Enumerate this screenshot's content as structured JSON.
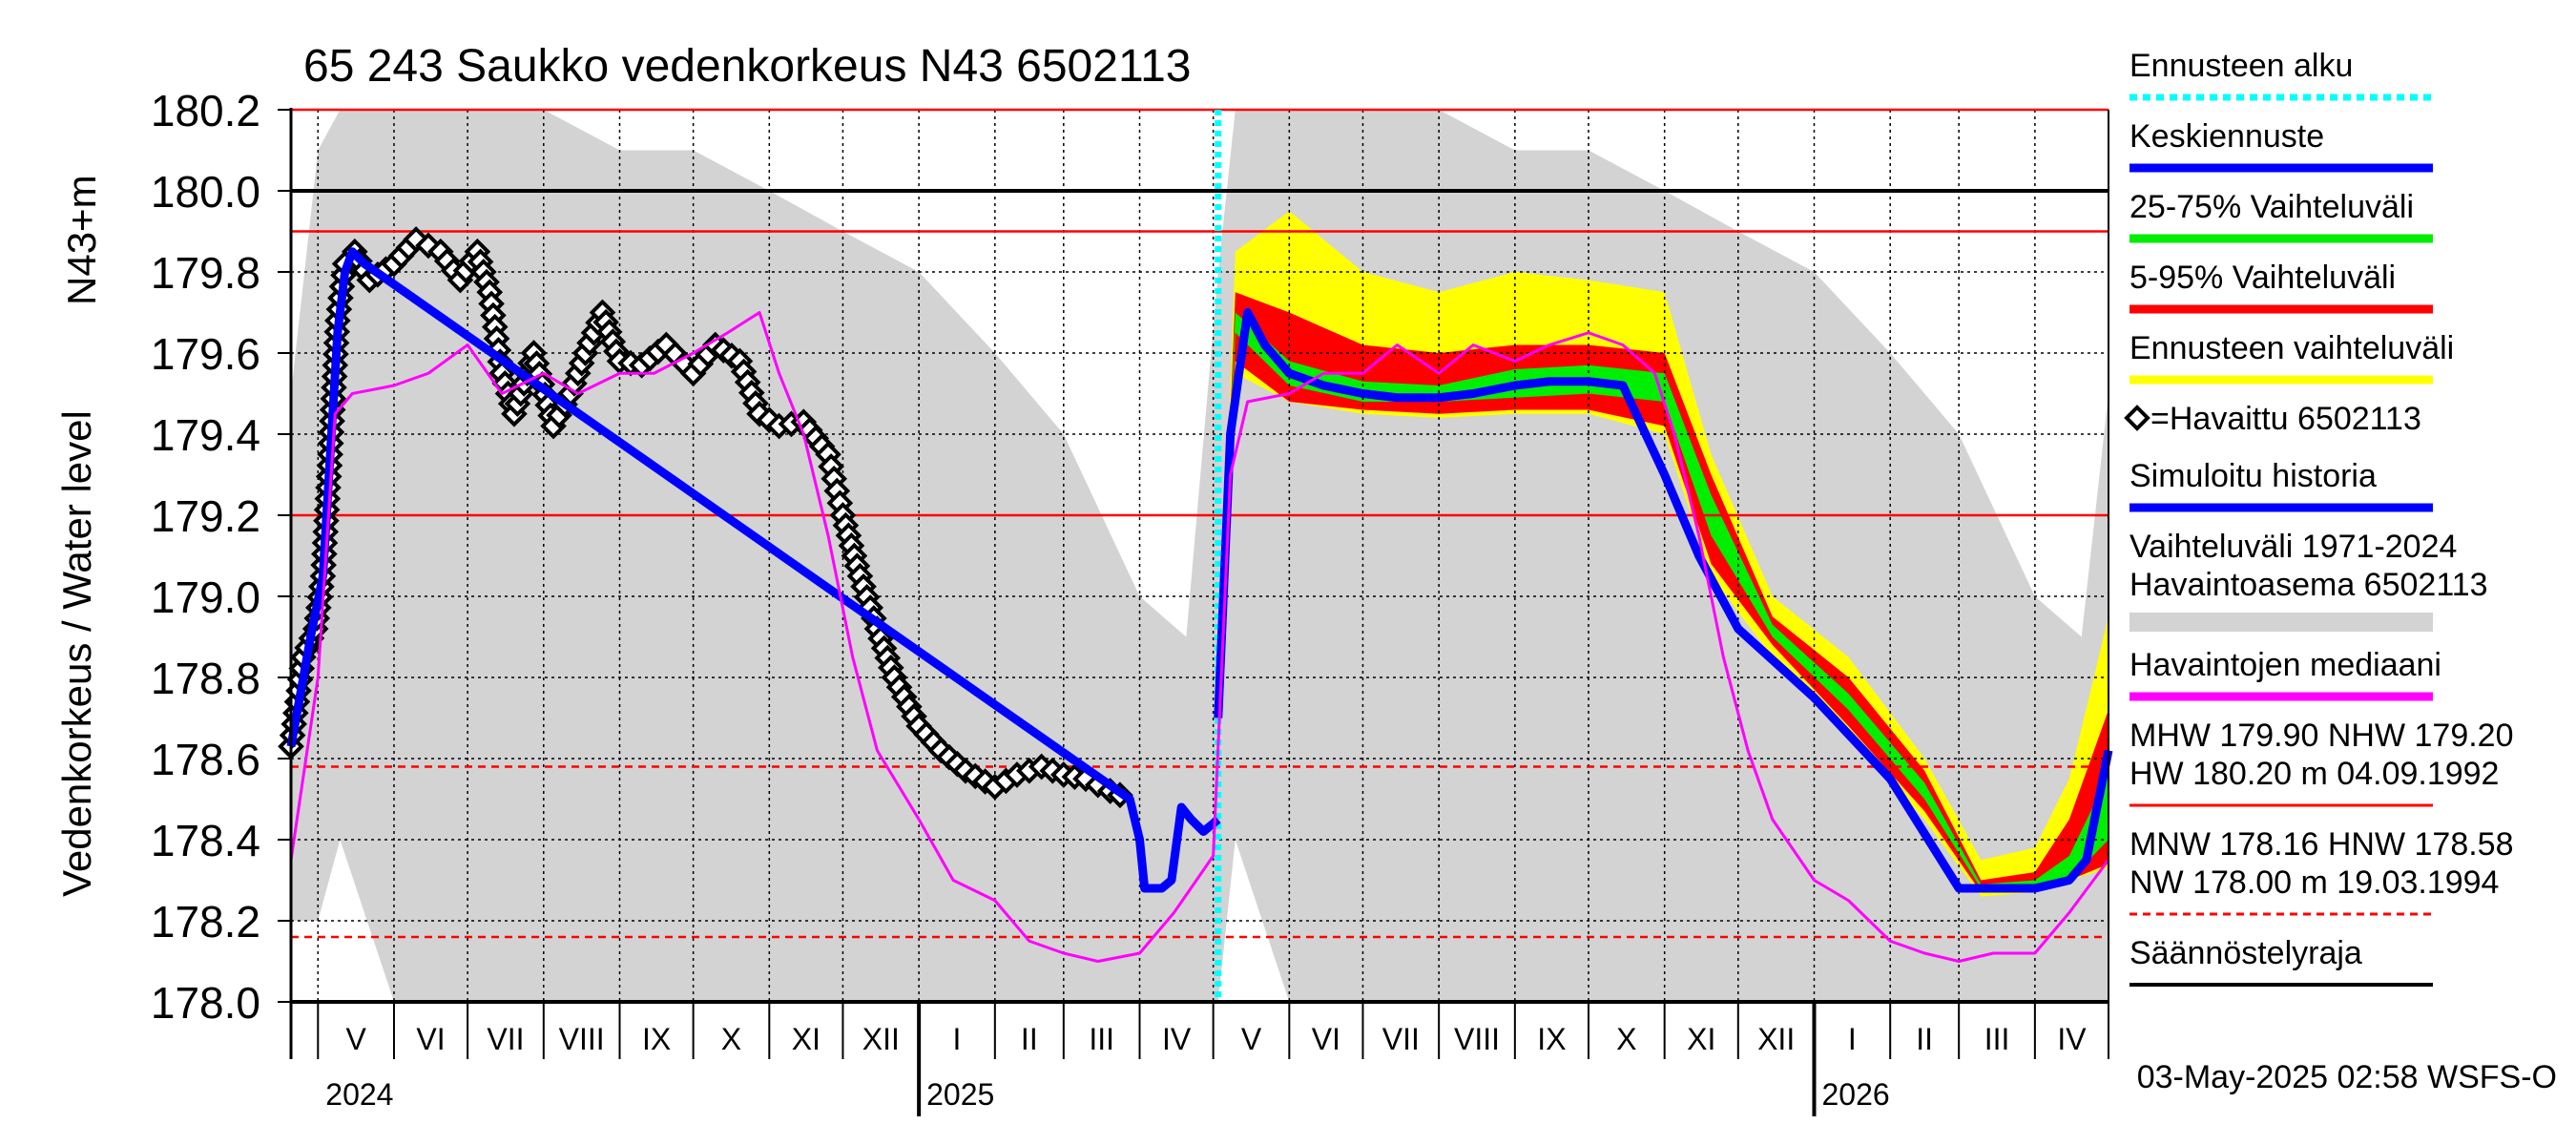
{
  "chart_data": {
    "type": "line",
    "title": "65 243 Saukko vedenkorkeus N43 6502113",
    "ylabel": "Vedenkorkeus / Water level",
    "yunit": "N43+m",
    "ylim": [
      178.0,
      180.2
    ],
    "yticks": [
      "178.0",
      "178.2",
      "178.4",
      "178.6",
      "178.8",
      "179.0",
      "179.2",
      "179.4",
      "179.6",
      "179.8",
      "180.0",
      "180.2"
    ],
    "xlim": [
      "2024-04-20",
      "2026-05-01"
    ],
    "forecast_start": "2025-05-03",
    "month_labels": [
      "V",
      "VI",
      "VII",
      "VIII",
      "IX",
      "X",
      "XI",
      "XII",
      "I",
      "II",
      "III",
      "IV",
      "V",
      "VI",
      "VII",
      "VIII",
      "IX",
      "X",
      "XI",
      "XII",
      "I",
      "II",
      "III",
      "IV"
    ],
    "year_labels": [
      "2024",
      "2025",
      "2026"
    ],
    "grid": true,
    "reference_lines": [
      {
        "name": "HW",
        "value": 180.2,
        "color": "#ff0000",
        "style": "solid"
      },
      {
        "name": "Säännöstelyraja",
        "value": 180.0,
        "color": "#000000",
        "style": "solid"
      },
      {
        "name": "MHW",
        "value": 179.9,
        "color": "#ff0000",
        "style": "solid"
      },
      {
        "name": "NHW",
        "value": 179.2,
        "color": "#ff0000",
        "style": "solid"
      },
      {
        "name": "HNW",
        "value": 178.58,
        "color": "#ff0000",
        "style": "dashed"
      },
      {
        "name": "MNW",
        "value": 178.16,
        "color": "#ff0000",
        "style": "dashed"
      }
    ],
    "series": [
      {
        "name": "Havaittu 6502113",
        "color": "#000000",
        "marker": "diamond",
        "x": [
          "2024-04-20",
          "2024-04-25",
          "2024-04-30",
          "2024-05-03",
          "2024-05-06",
          "2024-05-09",
          "2024-05-12",
          "2024-05-16",
          "2024-05-22",
          "2024-06-01",
          "2024-06-10",
          "2024-06-20",
          "2024-06-28",
          "2024-07-05",
          "2024-07-10",
          "2024-07-15",
          "2024-07-20",
          "2024-07-28",
          "2024-08-05",
          "2024-08-12",
          "2024-08-18",
          "2024-08-25",
          "2024-09-01",
          "2024-09-10",
          "2024-09-20",
          "2024-10-01",
          "2024-10-10",
          "2024-10-20",
          "2024-10-28",
          "2024-11-05",
          "2024-11-15",
          "2024-11-25",
          "2024-12-01",
          "2024-12-08",
          "2024-12-15",
          "2024-12-22",
          "2025-01-01",
          "2025-01-10",
          "2025-01-20",
          "2025-02-01",
          "2025-02-10",
          "2025-02-20",
          "2025-03-01",
          "2025-03-10",
          "2025-03-20",
          "2025-03-28"
        ],
        "y": [
          178.63,
          178.85,
          178.92,
          179.05,
          179.35,
          179.68,
          179.82,
          179.85,
          179.78,
          179.82,
          179.88,
          179.85,
          179.78,
          179.85,
          179.75,
          179.55,
          179.45,
          179.6,
          179.42,
          179.5,
          179.6,
          179.7,
          179.58,
          179.57,
          179.62,
          179.55,
          179.62,
          179.58,
          179.45,
          179.42,
          179.43,
          179.35,
          179.2,
          179.05,
          178.92,
          178.8,
          178.68,
          178.62,
          178.57,
          178.53,
          178.56,
          178.58,
          178.56,
          178.55,
          178.52,
          178.5
        ]
      },
      {
        "name": "Simuloitu historia",
        "color": "#0000ff",
        "x": [
          "2024-04-20",
          "2024-04-28",
          "2024-05-03",
          "2024-05-06",
          "2024-05-09",
          "2024-05-12",
          "2024-05-15",
          "2024-05-20",
          "2025-03-28",
          "2025-04-01",
          "2025-04-03",
          "2025-04-10",
          "2025-04-14",
          "2025-04-18",
          "2025-04-22",
          "2025-04-27",
          "2025-05-03"
        ],
        "y": [
          178.63,
          178.9,
          179.05,
          179.35,
          179.65,
          179.8,
          179.85,
          179.82,
          178.5,
          178.4,
          178.28,
          178.28,
          178.3,
          178.48,
          178.45,
          178.42,
          178.45
        ]
      },
      {
        "name": "Keskiennuste",
        "color": "#0000ff",
        "x": [
          "2025-05-03",
          "2025-05-08",
          "2025-05-15",
          "2025-05-22",
          "2025-06-01",
          "2025-06-15",
          "2025-07-01",
          "2025-07-15",
          "2025-08-01",
          "2025-08-15",
          "2025-09-01",
          "2025-09-15",
          "2025-10-01",
          "2025-10-15",
          "2025-11-01",
          "2025-11-15",
          "2025-12-01",
          "2026-01-01",
          "2026-02-01",
          "2026-03-01",
          "2026-03-15",
          "2026-04-01",
          "2026-04-15",
          "2026-04-22",
          "2026-05-01"
        ],
        "y": [
          178.7,
          179.4,
          179.7,
          179.62,
          179.55,
          179.52,
          179.5,
          179.49,
          179.49,
          179.5,
          179.52,
          179.53,
          179.53,
          179.52,
          179.3,
          179.1,
          178.92,
          178.75,
          178.55,
          178.28,
          178.28,
          178.28,
          178.3,
          178.35,
          178.62
        ]
      },
      {
        "name": "Havaintojen mediaani",
        "color": "#ff00ff",
        "x": [
          "2024-04-20",
          "2024-05-01",
          "2024-05-08",
          "2024-05-15",
          "2024-06-01",
          "2024-06-15",
          "2024-07-01",
          "2024-07-15",
          "2024-08-01",
          "2024-08-15",
          "2024-09-01",
          "2024-09-15",
          "2024-10-01",
          "2024-10-15",
          "2024-10-28",
          "2024-11-05",
          "2024-11-15",
          "2024-11-25",
          "2024-12-05",
          "2024-12-15",
          "2025-01-01",
          "2025-01-15",
          "2025-02-01",
          "2025-02-15",
          "2025-03-01",
          "2025-03-15",
          "2025-04-01",
          "2025-04-15",
          "2025-05-01",
          "2025-05-08",
          "2025-05-15",
          "2025-06-01",
          "2025-06-15",
          "2025-07-01",
          "2025-07-15",
          "2025-08-01",
          "2025-08-15",
          "2025-09-01",
          "2025-09-15",
          "2025-10-01",
          "2025-10-15",
          "2025-10-28",
          "2025-11-05",
          "2025-11-15",
          "2025-11-25",
          "2025-12-05",
          "2025-12-15",
          "2026-01-01",
          "2026-01-15",
          "2026-02-01",
          "2026-02-15",
          "2026-03-01",
          "2026-03-15",
          "2026-04-01",
          "2026-04-15",
          "2026-05-01"
        ],
        "y": [
          178.35,
          178.8,
          179.45,
          179.5,
          179.52,
          179.55,
          179.62,
          179.5,
          179.55,
          179.5,
          179.55,
          179.55,
          179.6,
          179.65,
          179.7,
          179.55,
          179.4,
          179.15,
          178.85,
          178.62,
          178.45,
          178.3,
          178.25,
          178.15,
          178.12,
          178.1,
          178.12,
          178.22,
          178.36,
          179.3,
          179.48,
          179.5,
          179.55,
          179.55,
          179.62,
          179.55,
          179.62,
          179.58,
          179.62,
          179.65,
          179.62,
          179.55,
          179.4,
          179.15,
          178.85,
          178.62,
          178.45,
          178.3,
          178.25,
          178.15,
          178.12,
          178.1,
          178.12,
          178.12,
          178.22,
          178.35
        ]
      }
    ],
    "bands": [
      {
        "name": "Vaihteluväli 1971-2024 Havaintoasema 6502113",
        "color": "#d3d3d3",
        "x": [
          "2024-04-20",
          "2024-05-01",
          "2024-05-10",
          "2024-06-01",
          "2024-07-01",
          "2024-08-01",
          "2024-09-01",
          "2024-10-01",
          "2024-11-01",
          "2024-12-01",
          "2025-01-01",
          "2025-02-01",
          "2025-03-01",
          "2025-04-01",
          "2025-04-20",
          "2025-05-03",
          "2025-05-10",
          "2025-06-01",
          "2025-07-01",
          "2025-08-01",
          "2025-09-01",
          "2025-10-01",
          "2025-11-01",
          "2025-12-01",
          "2026-01-01",
          "2026-02-01",
          "2026-03-01",
          "2026-04-01",
          "2026-04-20",
          "2026-05-01"
        ],
        "low": [
          178.2,
          178.2,
          178.4,
          178.0,
          178.0,
          178.0,
          178.0,
          178.0,
          178.0,
          178.0,
          178.0,
          178.0,
          178.0,
          178.0,
          178.0,
          178.0,
          178.4,
          178.0,
          178.0,
          178.0,
          178.0,
          178.0,
          178.0,
          178.0,
          178.0,
          178.0,
          178.0,
          178.0,
          178.0,
          178.0
        ],
        "high": [
          179.5,
          180.1,
          180.2,
          180.2,
          180.2,
          180.2,
          180.1,
          180.1,
          180.0,
          179.9,
          179.8,
          179.6,
          179.4,
          179.0,
          178.9,
          179.8,
          180.2,
          180.2,
          180.2,
          180.2,
          180.1,
          180.1,
          180.0,
          179.9,
          179.8,
          179.6,
          179.4,
          179.0,
          178.9,
          179.5
        ]
      },
      {
        "name": "Ennusteen vaihteluväli",
        "color": "#ffff00",
        "x": [
          "2025-05-03",
          "2025-05-10",
          "2025-06-01",
          "2025-07-01",
          "2025-08-01",
          "2025-09-01",
          "2025-10-01",
          "2025-11-01",
          "2025-11-20",
          "2025-12-15",
          "2026-01-15",
          "2026-02-15",
          "2026-03-10",
          "2026-04-01",
          "2026-04-15",
          "2026-05-01"
        ],
        "low": [
          178.7,
          179.55,
          179.48,
          179.45,
          179.44,
          179.45,
          179.45,
          179.4,
          179.05,
          178.85,
          178.65,
          178.45,
          178.26,
          178.27,
          178.3,
          178.33
        ],
        "high": [
          178.7,
          179.85,
          179.95,
          179.8,
          179.75,
          179.8,
          179.78,
          179.75,
          179.35,
          179.0,
          178.85,
          178.6,
          178.35,
          178.38,
          178.55,
          178.95
        ]
      },
      {
        "name": "5-95% Vaihteluväli",
        "color": "#ff0000",
        "x": [
          "2025-05-03",
          "2025-05-10",
          "2025-06-01",
          "2025-07-01",
          "2025-08-01",
          "2025-09-01",
          "2025-10-01",
          "2025-11-01",
          "2025-11-20",
          "2025-12-15",
          "2026-01-15",
          "2026-02-15",
          "2026-03-10",
          "2026-04-01",
          "2026-04-15",
          "2026-05-01"
        ],
        "low": [
          178.7,
          179.58,
          179.48,
          179.46,
          179.45,
          179.46,
          179.46,
          179.42,
          179.08,
          178.88,
          178.68,
          178.47,
          178.27,
          178.28,
          178.3,
          178.34
        ],
        "high": [
          178.7,
          179.75,
          179.7,
          179.62,
          179.6,
          179.62,
          179.62,
          179.6,
          179.3,
          178.95,
          178.8,
          178.57,
          178.3,
          178.32,
          178.45,
          178.72
        ]
      },
      {
        "name": "25-75% Vaihteluväli",
        "color": "#00ee00",
        "x": [
          "2025-05-03",
          "2025-05-10",
          "2025-06-01",
          "2025-07-01",
          "2025-08-01",
          "2025-09-01",
          "2025-10-01",
          "2025-11-01",
          "2025-11-20",
          "2025-12-15",
          "2026-01-15",
          "2026-02-15",
          "2026-03-10",
          "2026-04-01",
          "2026-04-15",
          "2026-05-01"
        ],
        "low": [
          178.7,
          179.65,
          179.52,
          179.48,
          179.48,
          179.49,
          179.5,
          179.48,
          179.15,
          178.9,
          178.72,
          178.5,
          178.28,
          178.28,
          178.3,
          178.4
        ],
        "high": [
          178.7,
          179.7,
          179.58,
          179.53,
          179.52,
          179.56,
          179.57,
          179.55,
          179.25,
          178.93,
          178.76,
          178.54,
          178.29,
          178.3,
          178.36,
          178.56
        ]
      }
    ]
  },
  "legend": {
    "items": [
      {
        "label": "Ennusteen alku",
        "color": "#00ffff",
        "style": "dotted"
      },
      {
        "label": "Keskiennuste",
        "color": "#0000ff",
        "style": "line"
      },
      {
        "label": "25-75% Vaihteluväli",
        "color": "#00ee00",
        "style": "line"
      },
      {
        "label": "5-95% Vaihteluväli",
        "color": "#ff0000",
        "style": "line"
      },
      {
        "label": "Ennusteen vaihteluväli",
        "color": "#ffff00",
        "style": "line"
      },
      {
        "label": "=Havaittu 6502113",
        "color": "#000000",
        "style": "diamond"
      },
      {
        "label": "Simuloitu historia",
        "color": "#0000ff",
        "style": "line"
      },
      {
        "label": "Vaihteluväli 1971-2024",
        "label2": " Havaintoasema 6502113",
        "color": "#d3d3d3",
        "style": "band"
      },
      {
        "label": "Havaintojen mediaani",
        "color": "#ff00ff",
        "style": "line"
      },
      {
        "label": "MHW 179.90 NHW 179.20",
        "label2": "HW 180.20 m 04.09.1992",
        "color": "#ff0000",
        "style": "line"
      },
      {
        "label": "MNW 178.16 HNW 178.58",
        "label2": "NW 178.00 m 19.03.1994",
        "color": "#ff0000",
        "style": "dashed"
      },
      {
        "label": "Säännöstelyraja",
        "color": "#000000",
        "style": "line"
      }
    ]
  },
  "footer": "03-May-2025 02:58 WSFS-O"
}
